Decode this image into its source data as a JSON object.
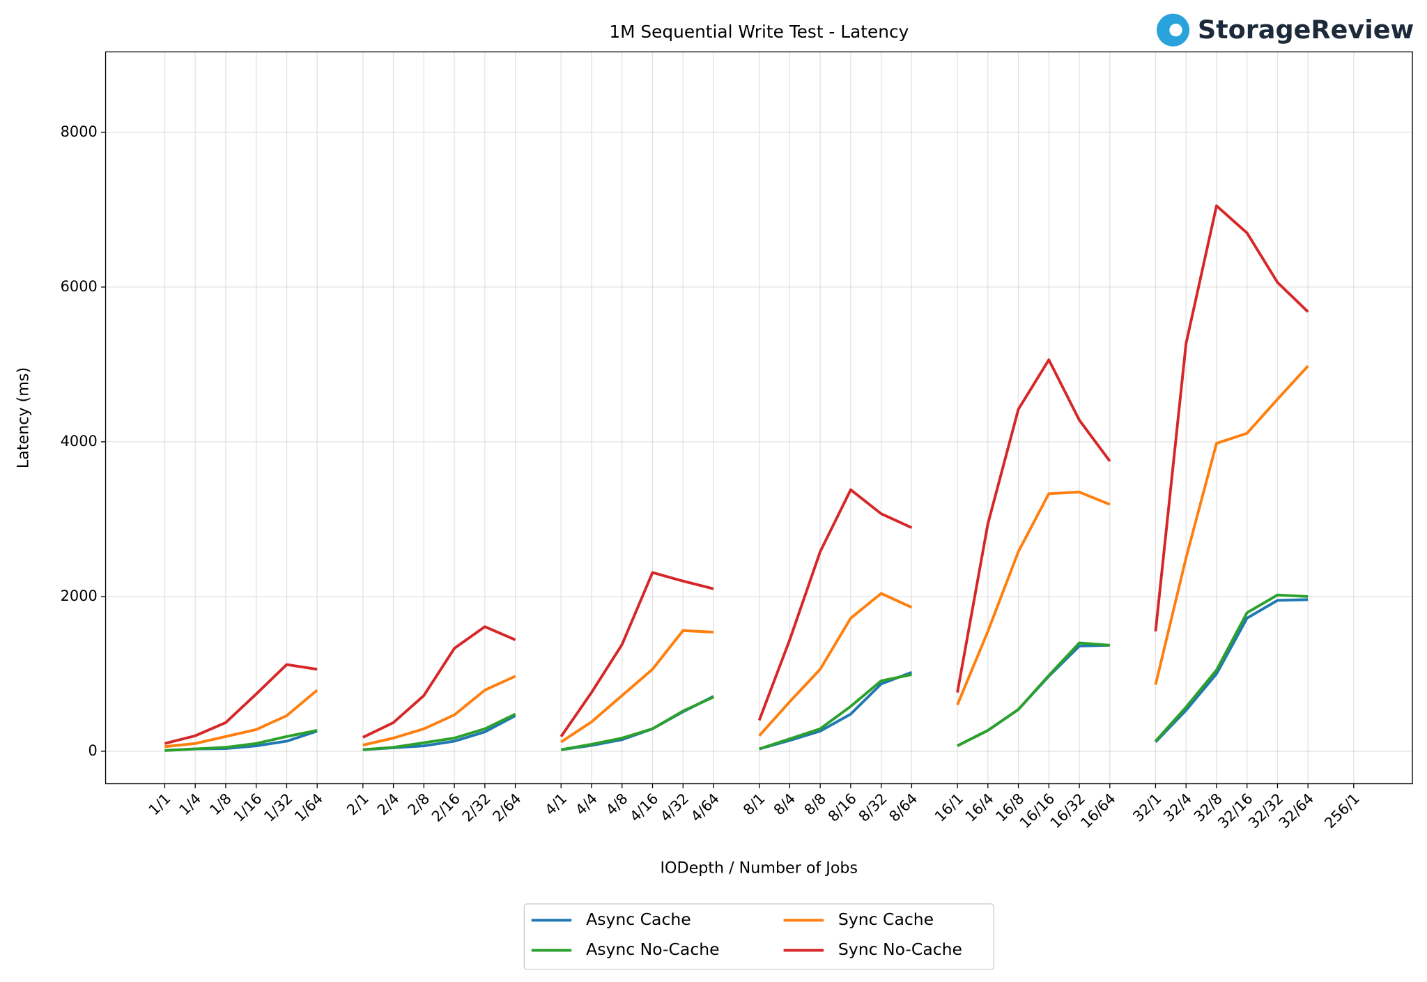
{
  "chart_data": {
    "type": "line",
    "title": "1M Sequential Write Test - Latency",
    "logo": "StorageReview",
    "x_label": "IODepth / Number of Jobs",
    "y_label": "Latency (ms)",
    "categories": [
      "1/1",
      "1/4",
      "1/8",
      "1/16",
      "1/32",
      "1/64",
      null,
      "2/1",
      "2/4",
      "2/8",
      "2/16",
      "2/32",
      "2/64",
      null,
      "4/1",
      "4/4",
      "4/8",
      "4/16",
      "4/32",
      "4/64",
      null,
      "8/1",
      "8/4",
      "8/8",
      "8/16",
      "8/32",
      "8/64",
      null,
      "16/1",
      "16/4",
      "16/8",
      "16/16",
      "16/32",
      "16/64",
      null,
      "32/1",
      "32/4",
      "32/8",
      "32/16",
      "32/32",
      "32/64",
      null,
      "256/1"
    ],
    "series": [
      {
        "name": "Async Cache",
        "color": "#1f77b4",
        "values": [
          10,
          30,
          35,
          70,
          130,
          260,
          null,
          20,
          45,
          70,
          130,
          250,
          460,
          null,
          20,
          75,
          150,
          290,
          510,
          710,
          null,
          30,
          140,
          260,
          480,
          870,
          1020,
          null,
          70,
          270,
          540,
          970,
          1360,
          1370,
          null,
          120,
          530,
          1000,
          1720,
          1950,
          1960,
          null,
          null
        ]
      },
      {
        "name": "Async No-Cache",
        "color": "#2ca02c",
        "values": [
          10,
          30,
          50,
          100,
          190,
          270,
          null,
          20,
          50,
          110,
          170,
          290,
          480,
          null,
          20,
          90,
          170,
          290,
          520,
          700,
          null,
          30,
          160,
          290,
          580,
          910,
          990,
          null,
          70,
          270,
          540,
          980,
          1400,
          1370,
          null,
          130,
          570,
          1050,
          1790,
          2020,
          2000,
          null,
          null
        ]
      },
      {
        "name": "Sync Cache",
        "color": "#ff7f0e",
        "values": [
          60,
          100,
          190,
          280,
          460,
          790,
          null,
          80,
          170,
          290,
          470,
          790,
          970,
          null,
          120,
          380,
          720,
          1060,
          1560,
          1540,
          null,
          200,
          640,
          1060,
          1720,
          2040,
          1860,
          null,
          600,
          1550,
          2580,
          3330,
          3350,
          3190,
          null,
          860,
          2500,
          3980,
          4110,
          4550,
          4980,
          null,
          null
        ]
      },
      {
        "name": "Sync No-Cache",
        "color": "#d62728",
        "values": [
          100,
          200,
          370,
          740,
          1120,
          1060,
          null,
          180,
          370,
          720,
          1330,
          1610,
          1440,
          null,
          190,
          760,
          1380,
          2310,
          2200,
          2100,
          null,
          400,
          1440,
          2580,
          3380,
          3070,
          2890,
          null,
          760,
          2940,
          4420,
          5060,
          4280,
          3750,
          null,
          1550,
          5270,
          7050,
          6700,
          6060,
          5680,
          null,
          null
        ]
      }
    ],
    "ylim": [
      -420,
      9040
    ],
    "yticks": [
      0,
      2000,
      4000,
      6000,
      8000
    ],
    "grid": true,
    "legend": "bottom"
  }
}
